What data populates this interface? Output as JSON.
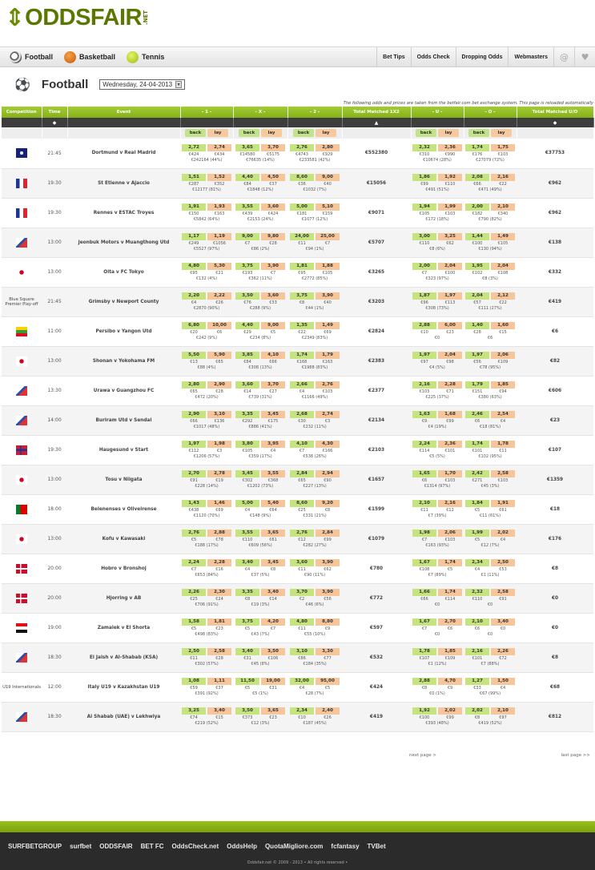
{
  "brand": {
    "arrow": "⇕",
    "name": "ODDSFAIR",
    "tld": ".NET"
  },
  "nav": {
    "sports": [
      {
        "label": "Football",
        "icon": "football-icon"
      },
      {
        "label": "Basketball",
        "icon": "basketball-icon"
      },
      {
        "label": "Tennis",
        "icon": "tennis-icon"
      }
    ],
    "links": [
      "Bet Tips",
      "Odds Check",
      "Dropping Odds",
      "Webmasters"
    ],
    "at_icon": "@",
    "heart_icon": "♥"
  },
  "page": {
    "title": "Football",
    "date": "Wednesday, 24-04-2013",
    "info": "The following odds and prices are taken from the betfair.com bet exchange system. This page is reloaded automatically"
  },
  "columns": {
    "competition": "Competition",
    "time": "Time",
    "event": "Event",
    "one": "- 1 -",
    "x": "- X -",
    "two": "- 2 -",
    "total12": "Total Matched 1X2",
    "u": "- U -",
    "o": "- O -",
    "totaluo": "Total Matched U/O"
  },
  "sub": {
    "back": "back",
    "lay": "lay"
  },
  "events": [
    {
      "comp": "",
      "flag": "fl-cl",
      "time": "21:45",
      "event": "Dortmund v Real Madrid",
      "o1": [
        "2,72",
        "2,74",
        "€424",
        "€434",
        "€242164 (44%)"
      ],
      "ox": [
        "3,65",
        "3,70",
        "€14580",
        "€5175",
        "€76635 (14%)"
      ],
      "o2": [
        "2,76",
        "2,80",
        "€4743",
        "€929",
        "€233581 (42%)"
      ],
      "tot": "€552380",
      "ou": [
        "2,32",
        "2,36",
        "€310",
        "€990",
        "€10674 (28%)"
      ],
      "oo": [
        "1,74",
        "1,75",
        "€176",
        "€103",
        "€27079 (72%)"
      ],
      "totuo": "€37753"
    },
    {
      "comp": "",
      "flag": "fl-fr",
      "time": "19:30",
      "event": "St Etienne v Ajaccio",
      "o1": [
        "1,51",
        "1,52",
        "€287",
        "€352",
        "€12177 (81%)"
      ],
      "ox": [
        "4,40",
        "4,50",
        "€84",
        "€37",
        "€1848 (12%)"
      ],
      "o2": [
        "8,60",
        "9,00",
        "€36",
        "€40",
        "€1032 (7%)"
      ],
      "tot": "€15056",
      "ou": [
        "1,86",
        "1,92",
        "€99",
        "€110",
        "€491 (51%)"
      ],
      "oo": [
        "2,08",
        "2,16",
        "€66",
        "€22",
        "€471 (49%)"
      ],
      "totuo": "€962"
    },
    {
      "comp": "",
      "flag": "fl-fr",
      "time": "19:30",
      "event": "Rennes v ESTAC Troyes",
      "o1": [
        "1,91",
        "1,93",
        "€150",
        "€163",
        "€5842 (64%)"
      ],
      "ox": [
        "3,55",
        "3,60",
        "€439",
        "€424",
        "€2153 (24%)"
      ],
      "o2": [
        "5,00",
        "5,10",
        "€181",
        "€159",
        "€1077 (12%)"
      ],
      "tot": "€9071",
      "ou": [
        "1,94",
        "1,99",
        "€105",
        "€103",
        "€172 (18%)"
      ],
      "oo": [
        "2,00",
        "2,10",
        "€182",
        "€340",
        "€790 (82%)"
      ],
      "totuo": "€962"
    },
    {
      "comp": "",
      "flag": "fl-kr",
      "time": "13:00",
      "event": "Jeonbuk Motors v Muangthong Utd",
      "o1": [
        "1,17",
        "1,19",
        "€249",
        "€1056",
        "€5527 (97%)"
      ],
      "ox": [
        "9,00",
        "9,80",
        "€7",
        "€28",
        "€86 (2%)"
      ],
      "o2": [
        "24,00",
        "25,00",
        "€11",
        "€7",
        "€94 (1%)"
      ],
      "tot": "€5707",
      "ou": [
        "3,00",
        "3,25",
        "€110",
        "€62",
        "€8 (6%)"
      ],
      "oo": [
        "1,44",
        "1,49",
        "€100",
        "€105",
        "€130 (94%)"
      ],
      "totuo": "€138"
    },
    {
      "comp": "",
      "flag": "fl-jp",
      "time": "13:00",
      "event": "Oita v FC Tokyo",
      "o1": [
        "4,80",
        "5,30",
        "€95",
        "€21",
        "€132 (4%)"
      ],
      "ox": [
        "3,75",
        "3,90",
        "€193",
        "€7",
        "€362 (11%)"
      ],
      "o2": [
        "1,81",
        "1,88",
        "€95",
        "€105",
        "€2772 (85%)"
      ],
      "tot": "€3265",
      "ou": [
        "2,00",
        "2,04",
        "€7",
        "€100",
        "€323 (97%)"
      ],
      "oo": [
        "1,95",
        "2,04",
        "€102",
        "€108",
        "€8 (3%)"
      ],
      "totuo": "€332"
    },
    {
      "comp": "Blue Square Premier Play-off",
      "flag": "",
      "time": "21:45",
      "event": "Grimsby v Newport County",
      "o1": [
        "2,20",
        "2,22",
        "€4",
        "€26",
        "€2870 (90%)"
      ],
      "ox": [
        "3,50",
        "3,60",
        "€76",
        "€33",
        "€288 (9%)"
      ],
      "o2": [
        "3,75",
        "3,90",
        "€8",
        "€40",
        "€44 (1%)"
      ],
      "tot": "€3203",
      "ou": [
        "1,87",
        "1,97",
        "€96",
        "€113",
        "€308 (73%)"
      ],
      "oo": [
        "2,04",
        "2,12",
        "€57",
        "€22",
        "€111 (27%)"
      ],
      "totuo": "€419"
    },
    {
      "comp": "",
      "flag": "fl-mm",
      "time": "11:00",
      "event": "Persibo v Yangon Utd",
      "o1": [
        "6,80",
        "10,00",
        "€20",
        "€6",
        "€242 (9%)"
      ],
      "ox": [
        "4,40",
        "9,00",
        "€29",
        "€5",
        "€234 (8%)"
      ],
      "o2": [
        "1,35",
        "1,49",
        "€22",
        "€69",
        "€2349 (83%)"
      ],
      "tot": "€2824",
      "ou": [
        "2,88",
        "6,00",
        "€10",
        "€23",
        "€0"
      ],
      "oo": [
        "1,40",
        "1,60",
        "€28",
        "€15",
        "€6"
      ],
      "totuo": "€6"
    },
    {
      "comp": "",
      "flag": "fl-jp",
      "time": "13:00",
      "event": "Shonan v Yokohama FM",
      "o1": [
        "5,50",
        "5,90",
        "€13",
        "€65",
        "€88 (4%)"
      ],
      "ox": [
        "3,85",
        "4,10",
        "€84",
        "€66",
        "€308 (13%)"
      ],
      "o2": [
        "1,74",
        "1,79",
        "€168",
        "€163",
        "€1988 (83%)"
      ],
      "tot": "€2383",
      "ou": [
        "1,97",
        "2,04",
        "€97",
        "€98",
        "€4 (5%)"
      ],
      "oo": [
        "1,97",
        "2,06",
        "€56",
        "€109",
        "€78 (95%)"
      ],
      "totuo": "€82"
    },
    {
      "comp": "",
      "flag": "fl-kr",
      "time": "13:30",
      "event": "Urawa v Guangzhou FC",
      "o1": [
        "2,80",
        "2,90",
        "€65",
        "€28",
        "€472 (20%)"
      ],
      "ox": [
        "3,60",
        "3,70",
        "€14",
        "€27",
        "€739 (31%)"
      ],
      "o2": [
        "2,66",
        "2,76",
        "€4",
        "€103",
        "€1166 (49%)"
      ],
      "tot": "€2377",
      "ou": [
        "2,16",
        "2,28",
        "€103",
        "€71",
        "€225 (37%)"
      ],
      "oo": [
        "1,79",
        "1,85",
        "€151",
        "€94",
        "€380 (63%)"
      ],
      "totuo": "€606"
    },
    {
      "comp": "",
      "flag": "fl-kr",
      "time": "14:00",
      "event": "Buriram Utd v Sendai",
      "o1": [
        "2,90",
        "3,10",
        "€66",
        "€136",
        "€1017 (48%)"
      ],
      "ox": [
        "3,35",
        "3,45",
        "€292",
        "€175",
        "€886 (41%)"
      ],
      "o2": [
        "2,68",
        "2,74",
        "€30",
        "€3",
        "€232 (11%)"
      ],
      "tot": "€2134",
      "ou": [
        "1,63",
        "1,68",
        "€9",
        "€99",
        "€4 (19%)"
      ],
      "oo": [
        "2,46",
        "2,54",
        "€6",
        "€4",
        "€18 (81%)"
      ],
      "totuo": "€23"
    },
    {
      "comp": "",
      "flag": "fl-no",
      "time": "19:30",
      "event": "Haugesund v Start",
      "o1": [
        "1,97",
        "1,98",
        "€112",
        "€3",
        "€1206 (57%)"
      ],
      "ox": [
        "3,80",
        "3,95",
        "€105",
        "€4",
        "€359 (17%)"
      ],
      "o2": [
        "4,10",
        "4,30",
        "€7",
        "€166",
        "€538 (26%)"
      ],
      "tot": "€2103",
      "ou": [
        "2,24",
        "2,36",
        "€114",
        "€101",
        "€5 (5%)"
      ],
      "oo": [
        "1,74",
        "1,78",
        "€101",
        "€11",
        "€102 (95%)"
      ],
      "totuo": "€107"
    },
    {
      "comp": "",
      "flag": "fl-jp",
      "time": "13:00",
      "event": "Tosu v Niigata",
      "o1": [
        "2,70",
        "2,78",
        "€91",
        "€19",
        "€228 (14%)"
      ],
      "ox": [
        "3,45",
        "3,55",
        "€302",
        "€368",
        "€1202 (73%)"
      ],
      "o2": [
        "2,84",
        "2,94",
        "€65",
        "€90",
        "€227 (13%)"
      ],
      "tot": "€1657",
      "ou": [
        "1,65",
        "1,70",
        "€6",
        "€103",
        "€1314 (97%)"
      ],
      "oo": [
        "2,42",
        "2,58",
        "€271",
        "€103",
        "€45 (3%)"
      ],
      "totuo": "€1359"
    },
    {
      "comp": "",
      "flag": "fl-pt",
      "time": "18:00",
      "event": "Belenenses v Oliveirense",
      "o1": [
        "1,43",
        "1,46",
        "€438",
        "€69",
        "€1120 (70%)"
      ],
      "ox": [
        "5,00",
        "5,40",
        "€4",
        "€64",
        "€148 (9%)"
      ],
      "o2": [
        "8,60",
        "9,20",
        "€25",
        "€8",
        "€331 (21%)"
      ],
      "tot": "€1599",
      "ou": [
        "2,10",
        "2,16",
        "€11",
        "€12",
        "€7 (39%)"
      ],
      "oo": [
        "1,84",
        "1,91",
        "€5",
        "€61",
        "€11 (61%)"
      ],
      "totuo": "€18"
    },
    {
      "comp": "",
      "flag": "fl-jp",
      "time": "13:00",
      "event": "Kofu v Kawasaki",
      "o1": [
        "2,76",
        "2,88",
        "€5",
        "€78",
        "€188 (17%)"
      ],
      "ox": [
        "3,55",
        "3,65",
        "€110",
        "€61",
        "€609 (56%)"
      ],
      "o2": [
        "2,76",
        "2,84",
        "€12",
        "€99",
        "€282 (27%)"
      ],
      "tot": "€1079",
      "ou": [
        "1,98",
        "2,06",
        "€7",
        "€103",
        "€163 (93%)"
      ],
      "oo": [
        "1,99",
        "2,02",
        "€5",
        "€4",
        "€12 (7%)"
      ],
      "totuo": "€176"
    },
    {
      "comp": "",
      "flag": "fl-dk",
      "time": "20:00",
      "event": "Hobro v Bronshoj",
      "o1": [
        "2,24",
        "2,28",
        "€7",
        "€16",
        "€653 (84%)"
      ],
      "ox": [
        "3,40",
        "3,45",
        "€4",
        "€8",
        "€37 (5%)"
      ],
      "o2": [
        "3,60",
        "3,90",
        "€11",
        "€62",
        "€90 (11%)"
      ],
      "tot": "€780",
      "ou": [
        "1,67",
        "1,74",
        "€108",
        "€5",
        "€7 (89%)"
      ],
      "oo": [
        "2,34",
        "2,50",
        "€4",
        "€53",
        "€1 (11%)"
      ],
      "totuo": "€8"
    },
    {
      "comp": "",
      "flag": "fl-dk",
      "time": "20:00",
      "event": "Hjorring v AB",
      "o1": [
        "2,26",
        "2,30",
        "€25",
        "€24",
        "€706 (91%)"
      ],
      "ox": [
        "3,35",
        "3,40",
        "€8",
        "€14",
        "€19 (3%)"
      ],
      "o2": [
        "3,70",
        "3,90",
        "€2",
        "€56",
        "€46 (6%)"
      ],
      "tot": "€772",
      "ou": [
        "1,66",
        "1,74",
        "€66",
        "€114",
        "€0"
      ],
      "oo": [
        "2,32",
        "2,58",
        "€110",
        "€91",
        "€0"
      ],
      "totuo": "€0"
    },
    {
      "comp": "",
      "flag": "fl-eg",
      "time": "19:00",
      "event": "Zamalek v El Shorta",
      "o1": [
        "1,58",
        "1,81",
        "€5",
        "€23",
        "€498 (83%)"
      ],
      "ox": [
        "3,75",
        "4,20",
        "€5",
        "€7",
        "€43 (7%)"
      ],
      "o2": [
        "4,80",
        "8,80",
        "€11",
        "€9",
        "€55 (10%)"
      ],
      "tot": "€597",
      "ou": [
        "1,67",
        "2,70",
        "€7",
        "€6",
        "€0"
      ],
      "oo": [
        "2,10",
        "3,40",
        "€6",
        "€0",
        "€0"
      ],
      "totuo": "€0"
    },
    {
      "comp": "",
      "flag": "fl-kr",
      "time": "18:30",
      "event": "El Jaish v Al-Shabab (KSA)",
      "o1": [
        "2,50",
        "2,58",
        "€11",
        "€28",
        "€302 (57%)"
      ],
      "ox": [
        "3,40",
        "3,50",
        "€31",
        "€106",
        "€45 (8%)"
      ],
      "o2": [
        "3,10",
        "3,30",
        "€86",
        "€77",
        "€184 (35%)"
      ],
      "tot": "€532",
      "ou": [
        "1,78",
        "1,85",
        "€107",
        "€109",
        "€1 (12%)"
      ],
      "oo": [
        "2,16",
        "2,26",
        "€101",
        "€72",
        "€7 (88%)"
      ],
      "totuo": "€8"
    },
    {
      "comp": "U19 Internationals",
      "flag": "",
      "time": "12:00",
      "event": "Italy U19 v Kazakhstan U19",
      "o1": [
        "1,08",
        "1,11",
        "€59",
        "€37",
        "€391 (92%)"
      ],
      "ox": [
        "11,50",
        "19,00",
        "€5",
        "€31",
        "€5 (1%)"
      ],
      "o2": [
        "32,00",
        "95,00",
        "€4",
        "€5",
        "€28 (7%)"
      ],
      "tot": "€424",
      "ou": [
        "2,88",
        "4,70",
        "€8",
        "€9",
        "€0 (1%)"
      ],
      "oo": [
        "1,27",
        "1,50",
        "€33",
        "€4",
        "€67 (99%)"
      ],
      "totuo": "€68"
    },
    {
      "comp": "",
      "flag": "fl-kr",
      "time": "18:30",
      "event": "Al Shabab (UAE) v Lekhwiya",
      "o1": [
        "3,25",
        "3,40",
        "€74",
        "€15",
        "€219 (52%)"
      ],
      "ox": [
        "3,50",
        "3,65",
        "€373",
        "€23",
        "€12 (3%)"
      ],
      "o2": [
        "2,34",
        "2,40",
        "€10",
        "€26",
        "€187 (45%)"
      ],
      "tot": "€419",
      "ou": [
        "1,92",
        "2,02",
        "€100",
        "€99",
        "€393 (48%)"
      ],
      "oo": [
        "2,02",
        "2,10",
        "€8",
        "€97",
        "€419 (52%)"
      ],
      "totuo": "€812"
    }
  ],
  "pager": {
    "next": "next page >",
    "last": "last page >>"
  },
  "footer": {
    "logos": [
      "SURFBETGROUP",
      "surfbet",
      "ODDSFAIR",
      "BET FC",
      "OddsCheck.net",
      "OddsHelp",
      "QuotaMigliore.com",
      "fcfantasy",
      "TVBet"
    ],
    "copyright": "Oddsfair.net © 2009 - 2013 • All rights reserved •"
  }
}
